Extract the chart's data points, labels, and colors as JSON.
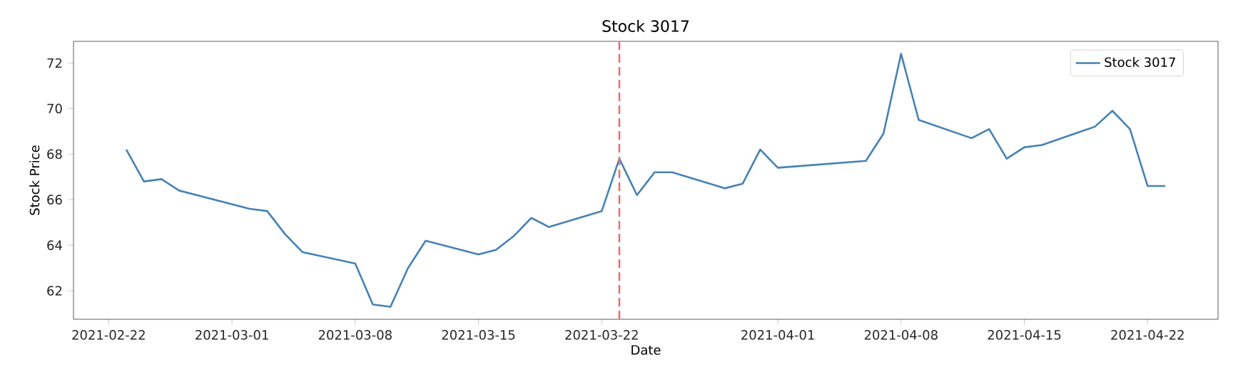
{
  "chart_data": {
    "type": "line",
    "title": "Stock 3017",
    "xlabel": "Date",
    "ylabel": "Stock Price",
    "x": [
      "2021-02-23",
      "2021-02-24",
      "2021-02-25",
      "2021-02-26",
      "2021-03-02",
      "2021-03-03",
      "2021-03-04",
      "2021-03-05",
      "2021-03-08",
      "2021-03-09",
      "2021-03-10",
      "2021-03-11",
      "2021-03-12",
      "2021-03-15",
      "2021-03-16",
      "2021-03-17",
      "2021-03-18",
      "2021-03-19",
      "2021-03-22",
      "2021-03-23",
      "2021-03-24",
      "2021-03-25",
      "2021-03-26",
      "2021-03-29",
      "2021-03-30",
      "2021-03-31",
      "2021-04-01",
      "2021-04-06",
      "2021-04-07",
      "2021-04-08",
      "2021-04-09",
      "2021-04-12",
      "2021-04-13",
      "2021-04-14",
      "2021-04-15",
      "2021-04-16",
      "2021-04-19",
      "2021-04-20",
      "2021-04-21",
      "2021-04-22",
      "2021-04-23"
    ],
    "series": [
      {
        "name": "Stock 3017",
        "color": "#4682b4",
        "values": [
          68.2,
          66.8,
          66.9,
          66.4,
          65.6,
          65.5,
          64.5,
          63.7,
          63.2,
          61.4,
          61.3,
          63.0,
          64.2,
          63.6,
          63.8,
          64.4,
          65.2,
          64.8,
          65.5,
          67.8,
          66.2,
          67.2,
          67.2,
          66.5,
          66.7,
          68.2,
          67.4,
          67.7,
          68.9,
          72.4,
          69.5,
          68.7,
          69.1,
          67.8,
          68.3,
          68.4,
          69.2,
          69.9,
          69.1,
          66.6,
          66.6
        ]
      }
    ],
    "xlim": [
      "2021-02-20",
      "2021-04-26"
    ],
    "ylim": [
      60.75,
      72.95
    ],
    "xticks": [
      "2021-02-22",
      "2021-03-01",
      "2021-03-08",
      "2021-03-15",
      "2021-03-22",
      "2021-04-01",
      "2021-04-08",
      "2021-04-15",
      "2021-04-22"
    ],
    "yticks": [
      62,
      64,
      66,
      68,
      70,
      72
    ],
    "ref_lines": [
      {
        "axis": "x",
        "value": "2021-03-23",
        "color": "#e8736e",
        "line_style": "dashed"
      }
    ],
    "legend": "top right",
    "grid": false,
    "marker": "none",
    "line_style": "solid"
  }
}
